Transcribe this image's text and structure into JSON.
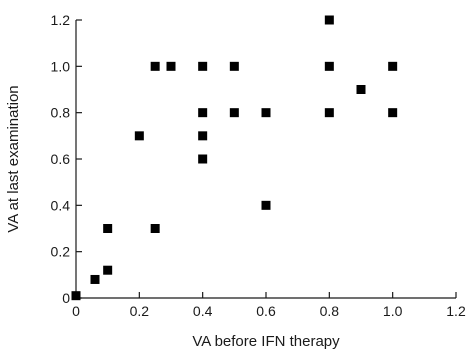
{
  "chart_data": {
    "type": "scatter",
    "xlabel": "VA before IFN therapy",
    "ylabel": "VA at last examination",
    "xlim": [
      0,
      1.2
    ],
    "ylim": [
      0,
      1.2
    ],
    "x_ticks": [
      "0",
      "0.2",
      "0.4",
      "0.6",
      "0.8",
      "1.0",
      "1.2"
    ],
    "y_ticks": [
      "0",
      "0.2",
      "0.4",
      "0.6",
      "0.8",
      "1.0",
      "1.2"
    ],
    "grid": false,
    "marker": "square",
    "marker_color": "#000000",
    "points": [
      {
        "x": 0.0,
        "y": 0.01
      },
      {
        "x": 0.06,
        "y": 0.08
      },
      {
        "x": 0.1,
        "y": 0.12
      },
      {
        "x": 0.1,
        "y": 0.3
      },
      {
        "x": 0.2,
        "y": 0.7
      },
      {
        "x": 0.25,
        "y": 0.3
      },
      {
        "x": 0.25,
        "y": 1.0
      },
      {
        "x": 0.3,
        "y": 1.0
      },
      {
        "x": 0.4,
        "y": 1.0
      },
      {
        "x": 0.4,
        "y": 0.8
      },
      {
        "x": 0.4,
        "y": 0.7
      },
      {
        "x": 0.4,
        "y": 0.6
      },
      {
        "x": 0.5,
        "y": 1.0
      },
      {
        "x": 0.5,
        "y": 0.8
      },
      {
        "x": 0.6,
        "y": 0.8
      },
      {
        "x": 0.6,
        "y": 0.4
      },
      {
        "x": 0.8,
        "y": 1.2
      },
      {
        "x": 0.8,
        "y": 1.0
      },
      {
        "x": 0.8,
        "y": 0.8
      },
      {
        "x": 0.9,
        "y": 0.9
      },
      {
        "x": 1.0,
        "y": 1.0
      },
      {
        "x": 1.0,
        "y": 0.8
      }
    ]
  }
}
